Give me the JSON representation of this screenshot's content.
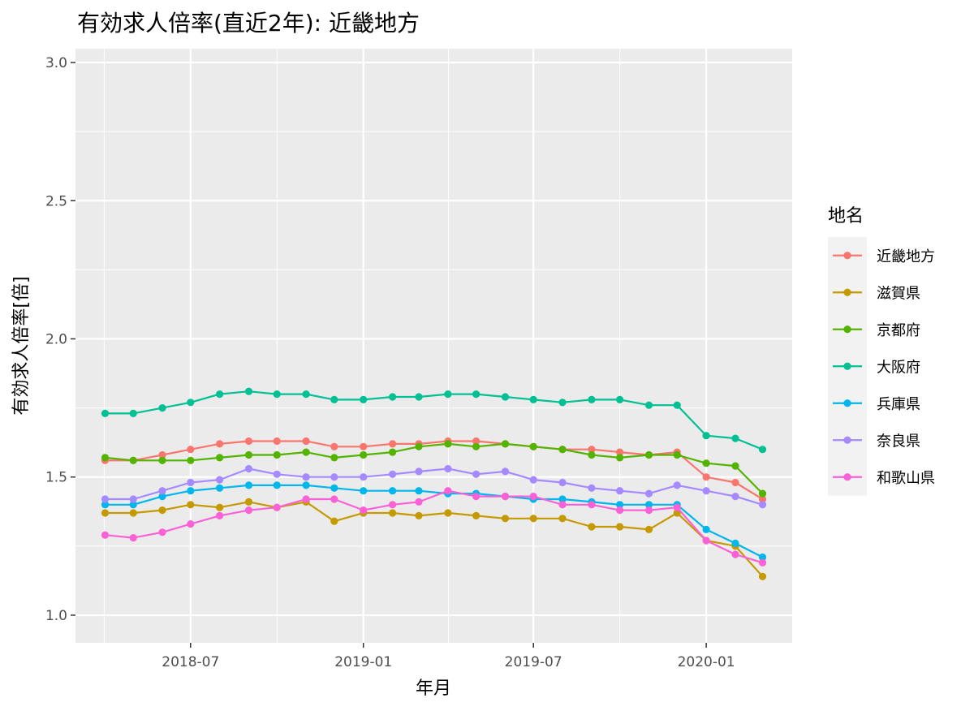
{
  "chart_data": {
    "type": "line",
    "title": "有効求人倍率(直近2年): 近畿地方",
    "xlabel": "年月",
    "ylabel": "有効求人倍率[倍]",
    "ylim": [
      0.9,
      3.05
    ],
    "yticks": [
      "1.0",
      "1.5",
      "2.0",
      "2.5",
      "3.0"
    ],
    "xticks": [
      "2018-07",
      "2019-01",
      "2019-07",
      "2020-01"
    ],
    "grid": true,
    "legend": {
      "title": "地名",
      "placement": "right"
    },
    "x": [
      "2018-04",
      "2018-05",
      "2018-06",
      "2018-07",
      "2018-08",
      "2018-09",
      "2018-10",
      "2018-11",
      "2018-12",
      "2019-01",
      "2019-02",
      "2019-03",
      "2019-04",
      "2019-05",
      "2019-06",
      "2019-07",
      "2019-08",
      "2019-09",
      "2019-10",
      "2019-11",
      "2019-12",
      "2020-01",
      "2020-02",
      "2020-03"
    ],
    "series": [
      {
        "name": "近畿地方",
        "color": "#F8766D",
        "values": [
          1.56,
          1.56,
          1.58,
          1.6,
          1.62,
          1.63,
          1.63,
          1.63,
          1.61,
          1.61,
          1.62,
          1.62,
          1.63,
          1.63,
          1.62,
          1.61,
          1.6,
          1.6,
          1.59,
          1.58,
          1.59,
          1.5,
          1.48,
          1.42
        ]
      },
      {
        "name": "滋賀県",
        "color": "#C49A00",
        "values": [
          1.37,
          1.37,
          1.38,
          1.4,
          1.39,
          1.41,
          1.39,
          1.41,
          1.34,
          1.37,
          1.37,
          1.36,
          1.37,
          1.36,
          1.35,
          1.35,
          1.35,
          1.32,
          1.32,
          1.31,
          1.37,
          1.27,
          1.25,
          1.14
        ]
      },
      {
        "name": "京都府",
        "color": "#53B400",
        "values": [
          1.57,
          1.56,
          1.56,
          1.56,
          1.57,
          1.58,
          1.58,
          1.59,
          1.57,
          1.58,
          1.59,
          1.61,
          1.62,
          1.61,
          1.62,
          1.61,
          1.6,
          1.58,
          1.57,
          1.58,
          1.58,
          1.55,
          1.54,
          1.44
        ]
      },
      {
        "name": "大阪府",
        "color": "#00C094",
        "values": [
          1.73,
          1.73,
          1.75,
          1.77,
          1.8,
          1.81,
          1.8,
          1.8,
          1.78,
          1.78,
          1.79,
          1.79,
          1.8,
          1.8,
          1.79,
          1.78,
          1.77,
          1.78,
          1.78,
          1.76,
          1.76,
          1.65,
          1.64,
          1.6
        ]
      },
      {
        "name": "兵庫県",
        "color": "#00B6EB",
        "values": [
          1.4,
          1.4,
          1.43,
          1.45,
          1.46,
          1.47,
          1.47,
          1.47,
          1.46,
          1.45,
          1.45,
          1.45,
          1.44,
          1.44,
          1.43,
          1.42,
          1.42,
          1.41,
          1.4,
          1.4,
          1.4,
          1.31,
          1.26,
          1.21
        ]
      },
      {
        "name": "奈良県",
        "color": "#A58AFF",
        "values": [
          1.42,
          1.42,
          1.45,
          1.48,
          1.49,
          1.53,
          1.51,
          1.5,
          1.5,
          1.5,
          1.51,
          1.52,
          1.53,
          1.51,
          1.52,
          1.49,
          1.48,
          1.46,
          1.45,
          1.44,
          1.47,
          1.45,
          1.43,
          1.4
        ]
      },
      {
        "name": "和歌山県",
        "color": "#FB61D7",
        "values": [
          1.29,
          1.28,
          1.3,
          1.33,
          1.36,
          1.38,
          1.39,
          1.42,
          1.42,
          1.38,
          1.4,
          1.41,
          1.45,
          1.43,
          1.43,
          1.43,
          1.4,
          1.4,
          1.38,
          1.38,
          1.39,
          1.27,
          1.22,
          1.19
        ]
      }
    ]
  }
}
